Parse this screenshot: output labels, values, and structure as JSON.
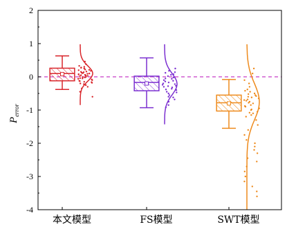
{
  "chart_data": {
    "type": "box",
    "ylabel_main": "P",
    "ylabel_sub": "error",
    "ylim": [
      -4,
      2
    ],
    "yticks": [
      "2",
      "1",
      "0",
      "-1",
      "-2",
      "-3",
      "-4"
    ],
    "yticks_values": [
      2,
      1,
      0,
      -1,
      -2,
      -3,
      -4
    ],
    "reference_line": {
      "y": 0,
      "style": "dashed",
      "color": "#c83cc8"
    },
    "categories": [
      "本文模型",
      "FS模型",
      "SWT模型"
    ],
    "boxes": [
      {
        "name": "本文模型",
        "color": "#d9262b",
        "whisker_low": -0.38,
        "q1": -0.12,
        "median": 0.1,
        "mean": 0.08,
        "q3": 0.26,
        "whisker_high": 0.63,
        "curve_range": [
          -0.85,
          0.98
        ],
        "curve_center": 0.1,
        "curve_sd": 0.23,
        "points": [
          0.46,
          0.38,
          0.33,
          0.28,
          0.25,
          0.22,
          0.2,
          0.18,
          0.16,
          0.14,
          0.12,
          0.1,
          0.09,
          0.08,
          0.06,
          0.05,
          0.03,
          0.02,
          0.0,
          -0.02,
          -0.04,
          -0.06,
          -0.08,
          -0.1,
          -0.12,
          -0.15,
          -0.18,
          -0.2,
          -0.22,
          -0.25,
          -0.3,
          -0.35,
          -0.45,
          -0.6,
          0.3,
          0.15,
          0.04,
          -0.05,
          -0.13,
          0.21,
          0.11,
          -0.01,
          0.07,
          -0.16,
          0.27
        ]
      },
      {
        "name": "FS模型",
        "color": "#7b2fd0",
        "whisker_low": -0.93,
        "q1": -0.42,
        "median": -0.17,
        "mean": -0.2,
        "q3": 0.02,
        "whisker_high": 0.57,
        "curve_range": [
          -1.43,
          0.98
        ],
        "curve_center": -0.22,
        "curve_sd": 0.32,
        "points": [
          0.25,
          0.18,
          0.12,
          0.06,
          0.02,
          -0.02,
          -0.06,
          -0.1,
          -0.14,
          -0.17,
          -0.2,
          -0.24,
          -0.28,
          -0.32,
          -0.36,
          -0.4,
          -0.45,
          -0.5,
          -0.55,
          -0.6,
          -0.68,
          -0.75,
          -0.85,
          -0.92,
          -0.05,
          -0.12,
          -0.3,
          -0.38,
          0.08,
          -0.22,
          -0.47,
          -0.27,
          0.14,
          -0.62
        ]
      },
      {
        "name": "SWT模型",
        "color": "#ee8a1c",
        "whisker_low": -1.55,
        "q1": -1.03,
        "median": -0.78,
        "mean": -0.8,
        "q3": -0.55,
        "whisker_high": -0.08,
        "curve_range": [
          -4.0,
          0.98
        ],
        "curve_center": -0.75,
        "curve_sd": 0.55,
        "points": [
          0.25,
          0.1,
          -0.1,
          -0.2,
          -0.3,
          -0.38,
          -0.45,
          -0.5,
          -0.55,
          -0.6,
          -0.65,
          -0.7,
          -0.75,
          -0.8,
          -0.85,
          -0.9,
          -0.95,
          -1.0,
          -1.05,
          -1.1,
          -1.15,
          -1.2,
          -1.3,
          -1.45,
          -1.6,
          -1.75,
          -1.9,
          -2.0,
          -2.1,
          -2.2,
          -2.3,
          -2.45,
          -2.55,
          -2.7,
          -2.85,
          -3.0,
          -3.15,
          -3.3,
          -3.45,
          -3.6,
          -0.72,
          -0.62,
          -0.88,
          -0.52,
          -0.98,
          -0.42,
          -1.08,
          -0.68,
          -0.78,
          -0.58
        ]
      }
    ]
  }
}
